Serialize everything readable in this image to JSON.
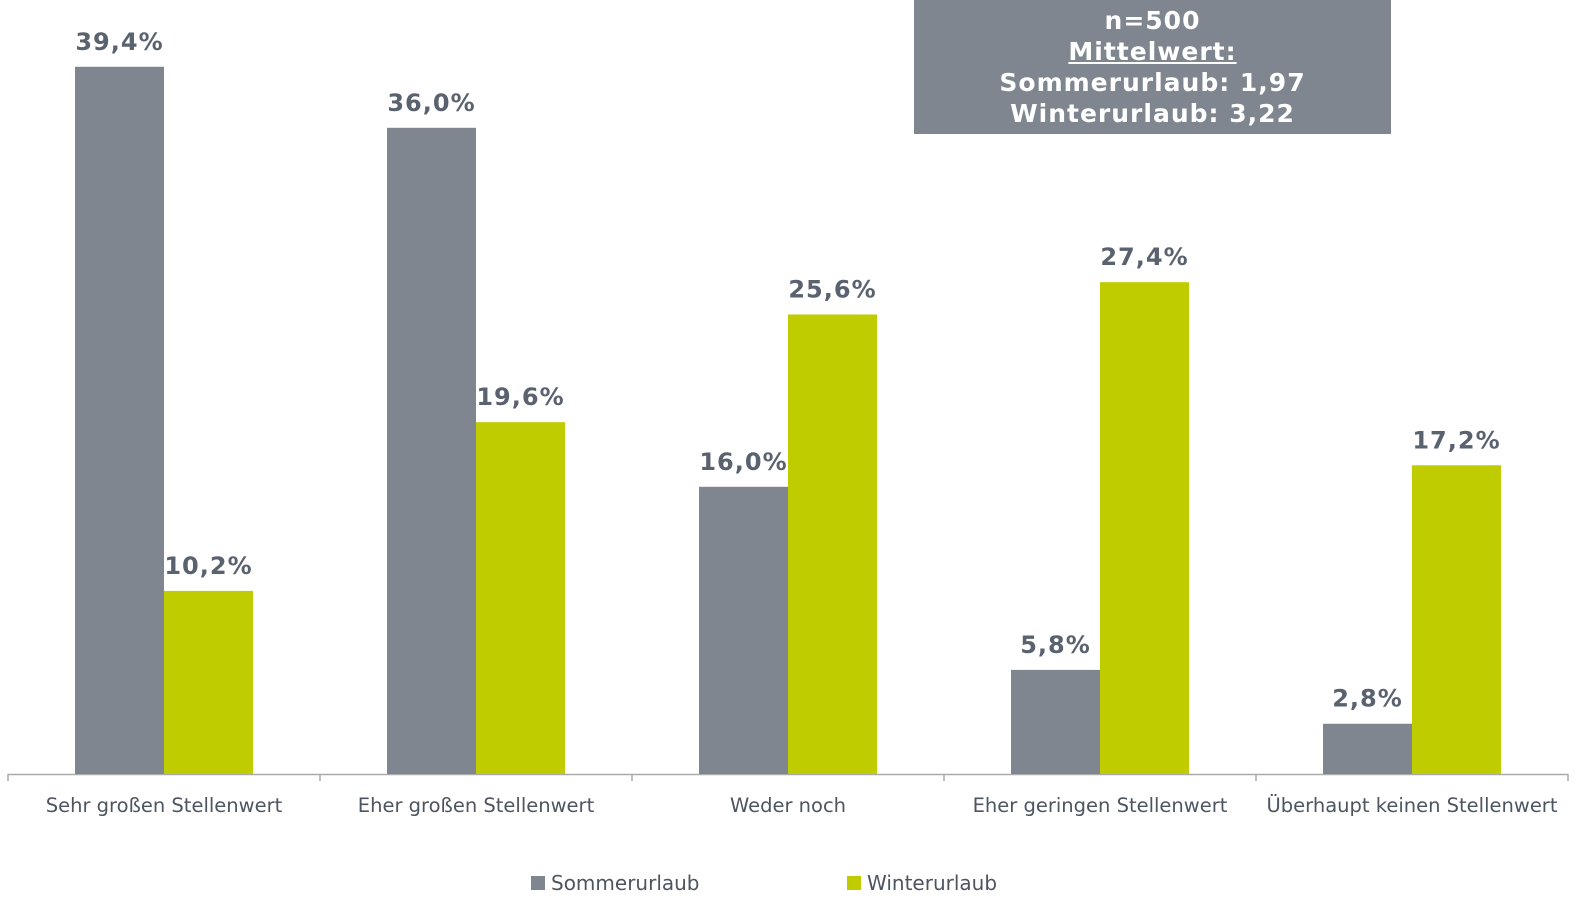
{
  "chart_data": {
    "type": "bar",
    "categories": [
      "Sehr großen Stellenwert",
      "Eher großen Stellenwert",
      "Weder noch",
      "Eher geringen Stellenwert",
      "Überhaupt keinen Stellenwert"
    ],
    "series": [
      {
        "name": "Sommerurlaub",
        "color": "#7f8690",
        "values": [
          39.4,
          36.0,
          16.0,
          5.8,
          2.8
        ],
        "value_labels": [
          "39,4%",
          "36,0%",
          "16,0%",
          "5,8%",
          "2,8%"
        ]
      },
      {
        "name": "Winterurlaub",
        "color": "#bfcc00",
        "values": [
          10.2,
          19.6,
          25.6,
          27.4,
          17.2
        ],
        "value_labels": [
          "10,2%",
          "19,6%",
          "25,6%",
          "27,4%",
          "17,2%"
        ]
      }
    ],
    "ylim": [
      0,
      40
    ],
    "annotations": [
      "n=500",
      "Mittelwert:",
      "Sommerurlaub: 1,97",
      "Winterurlaub: 3,22"
    ]
  }
}
